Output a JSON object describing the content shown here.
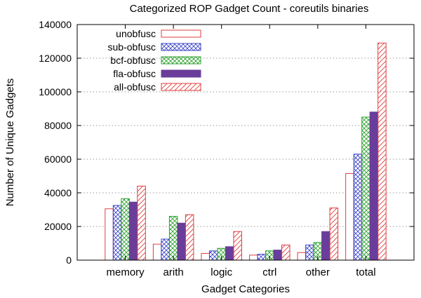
{
  "chart_data": {
    "type": "bar",
    "title": "Categorized ROP Gadget Count - coreutils binaries",
    "xlabel": "Gadget Categories",
    "ylabel": "Number of Unique Gadgets",
    "ylim": [
      0,
      140000
    ],
    "yticks": [
      0,
      20000,
      40000,
      60000,
      80000,
      100000,
      120000,
      140000
    ],
    "grid": true,
    "legend_position": "top-left",
    "categories": [
      "memory",
      "arith",
      "logic",
      "ctrl",
      "other",
      "total"
    ],
    "series": [
      {
        "name": "unobfusc",
        "color": "#e03c3c",
        "pattern": "empty",
        "values": [
          30500,
          9500,
          4000,
          3000,
          4500,
          51500
        ]
      },
      {
        "name": "sub-obfusc",
        "color": "#3c46c8",
        "pattern": "crosshatch",
        "values": [
          32500,
          12500,
          5500,
          3500,
          9000,
          63000
        ]
      },
      {
        "name": "bcf-obfusc",
        "color": "#2ca02c",
        "pattern": "crosshatch",
        "values": [
          36500,
          26000,
          7000,
          5500,
          10500,
          85000
        ]
      },
      {
        "name": "fla-obfusc",
        "color": "#6a3d9a",
        "pattern": "solid",
        "values": [
          34500,
          22000,
          8000,
          6000,
          17000,
          88000
        ]
      },
      {
        "name": "all-obfusc",
        "color": "#e03c3c",
        "pattern": "diagonal",
        "values": [
          44000,
          27000,
          17000,
          9000,
          31000,
          129000
        ]
      }
    ]
  }
}
